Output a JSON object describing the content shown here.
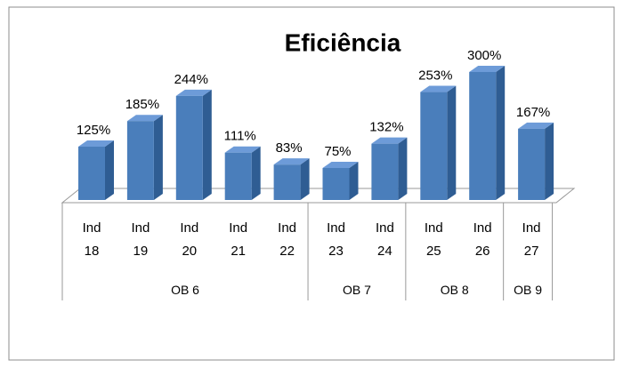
{
  "chart_data": {
    "type": "bar3d",
    "title": "Eficiência",
    "groups": [
      {
        "name": "OB 6",
        "categories": [
          "Ind 18",
          "Ind 19",
          "Ind 20",
          "Ind 21",
          "Ind 22"
        ]
      },
      {
        "name": "OB 7",
        "categories": [
          "Ind 23",
          "Ind 24"
        ]
      },
      {
        "name": "OB 8",
        "categories": [
          "Ind 25",
          "Ind 26"
        ]
      },
      {
        "name": "OB 9",
        "categories": [
          "Ind 27"
        ]
      }
    ],
    "values": [
      125,
      185,
      244,
      111,
      83,
      75,
      132,
      253,
      300,
      167
    ],
    "value_labels": [
      "125%",
      "185%",
      "244%",
      "111%",
      "83%",
      "75%",
      "132%",
      "253%",
      "300%",
      "167%"
    ],
    "color": "#4a7ebb",
    "side_color": "#2f5d93",
    "top_color": "#6d9bd8"
  }
}
